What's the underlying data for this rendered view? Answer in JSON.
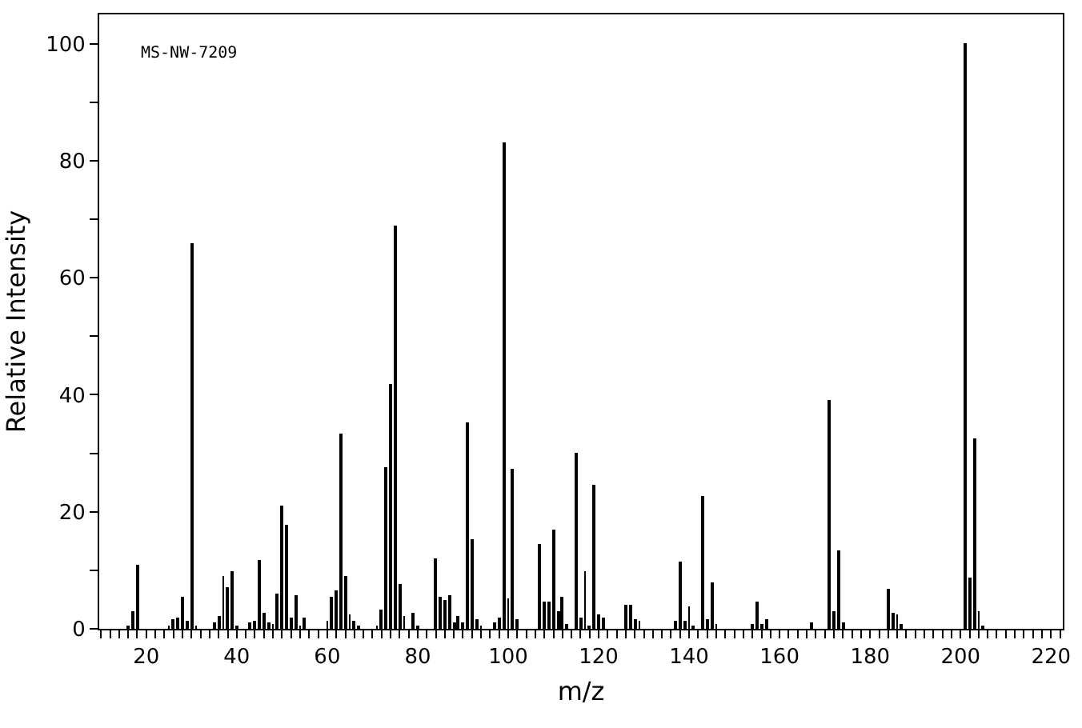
{
  "chart_data": {
    "type": "bar",
    "xlabel": "m/z",
    "ylabel": "Relative Intensity",
    "annotations": [
      "MS-NW-7209"
    ],
    "x": [
      16,
      17,
      18,
      25,
      26,
      27,
      28,
      29,
      30,
      31,
      35,
      36,
      37,
      38,
      39,
      40,
      43,
      44,
      45,
      46,
      47,
      48,
      49,
      50,
      51,
      52,
      53,
      54,
      55,
      60,
      61,
      62,
      63,
      64,
      65,
      66,
      67,
      71,
      72,
      73,
      74,
      75,
      76,
      77,
      79,
      80,
      84,
      85,
      86,
      87,
      88,
      89,
      90,
      91,
      92,
      93,
      94,
      97,
      98,
      99,
      100,
      101,
      102,
      107,
      108,
      109,
      110,
      111,
      112,
      113,
      115,
      116,
      117,
      118,
      119,
      120,
      121,
      126,
      127,
      128,
      129,
      137,
      138,
      139,
      140,
      141,
      143,
      144,
      145,
      146,
      154,
      155,
      156,
      157,
      167,
      171,
      172,
      173,
      174,
      184,
      185,
      186,
      187,
      201,
      202,
      203,
      204,
      205
    ],
    "values": [
      0.6,
      3,
      11,
      0.5,
      1.6,
      2,
      5.5,
      1.4,
      65.8,
      0.5,
      1.1,
      2.2,
      9,
      7.1,
      9.8,
      0.5,
      1.2,
      1.4,
      11.7,
      2.7,
      1.1,
      0.8,
      6.1,
      21,
      17.8,
      1.9,
      5.7,
      0.5,
      1.9,
      1.4,
      5.5,
      6.6,
      33.3,
      9,
      2.5,
      1.4,
      0.5,
      0.6,
      3.3,
      27.6,
      41.8,
      69,
      7.7,
      2.2,
      2.7,
      0.5,
      12,
      5.5,
      4.9,
      5.7,
      1.1,
      2.2,
      1.1,
      35.2,
      15.3,
      1.6,
      0.5,
      1.1,
      1.9,
      83,
      5.2,
      27.3,
      1.6,
      14.5,
      4.6,
      4.6,
      17,
      3,
      5.5,
      0.8,
      30,
      1.9,
      9.8,
      0.6,
      24.6,
      2.5,
      1.9,
      4.1,
      4.1,
      1.6,
      1.4,
      1.4,
      11.6,
      1.4,
      3.8,
      0.5,
      22.7,
      1.6,
      7.9,
      0.8,
      0.8,
      4.6,
      0.8,
      1.6,
      1.2,
      39.1,
      3,
      13.4,
      1.1,
      6.8,
      2.7,
      2.5,
      0.8,
      100,
      8.7,
      32.5,
      3,
      0.5
    ],
    "color": "#000000",
    "xlim": [
      9.6,
      222.6
    ],
    "xticks": [
      {
        "value": 10,
        "label": null
      },
      {
        "value": 12,
        "label": null
      },
      {
        "value": 14,
        "label": null
      },
      {
        "value": 16,
        "label": null
      },
      {
        "value": 18,
        "label": null
      },
      20,
      {
        "value": 22,
        "label": null
      },
      {
        "value": 24,
        "label": null
      },
      {
        "value": 26,
        "label": null
      },
      {
        "value": 28,
        "label": null
      },
      {
        "value": 30,
        "label": null
      },
      {
        "value": 32,
        "label": null
      },
      {
        "value": 34,
        "label": null
      },
      {
        "value": 36,
        "label": null
      },
      {
        "value": 38,
        "label": null
      },
      40,
      {
        "value": 42,
        "label": null
      },
      {
        "value": 44,
        "label": null
      },
      {
        "value": 46,
        "label": null
      },
      {
        "value": 48,
        "label": null
      },
      {
        "value": 50,
        "label": null
      },
      {
        "value": 52,
        "label": null
      },
      {
        "value": 54,
        "label": null
      },
      {
        "value": 56,
        "label": null
      },
      {
        "value": 58,
        "label": null
      },
      60,
      {
        "value": 62,
        "label": null
      },
      {
        "value": 64,
        "label": null
      },
      {
        "value": 66,
        "label": null
      },
      {
        "value": 68,
        "label": null
      },
      {
        "value": 70,
        "label": null
      },
      {
        "value": 72,
        "label": null
      },
      {
        "value": 74,
        "label": null
      },
      {
        "value": 76,
        "label": null
      },
      {
        "value": 78,
        "label": null
      },
      80,
      {
        "value": 82,
        "label": null
      },
      {
        "value": 84,
        "label": null
      },
      {
        "value": 86,
        "label": null
      },
      {
        "value": 88,
        "label": null
      },
      {
        "value": 90,
        "label": null
      },
      {
        "value": 92,
        "label": null
      },
      {
        "value": 94,
        "label": null
      },
      {
        "value": 96,
        "label": null
      },
      {
        "value": 98,
        "label": null
      },
      100,
      {
        "value": 102,
        "label": null
      },
      {
        "value": 104,
        "label": null
      },
      {
        "value": 106,
        "label": null
      },
      {
        "value": 108,
        "label": null
      },
      {
        "value": 110,
        "label": null
      },
      {
        "value": 112,
        "label": null
      },
      {
        "value": 114,
        "label": null
      },
      {
        "value": 116,
        "label": null
      },
      {
        "value": 118,
        "label": null
      },
      120,
      {
        "value": 122,
        "label": null
      },
      {
        "value": 124,
        "label": null
      },
      {
        "value": 126,
        "label": null
      },
      {
        "value": 128,
        "label": null
      },
      {
        "value": 130,
        "label": null
      },
      {
        "value": 132,
        "label": null
      },
      {
        "value": 134,
        "label": null
      },
      {
        "value": 136,
        "label": null
      },
      {
        "value": 138,
        "label": null
      },
      140,
      {
        "value": 142,
        "label": null
      },
      {
        "value": 144,
        "label": null
      },
      {
        "value": 146,
        "label": null
      },
      {
        "value": 148,
        "label": null
      },
      {
        "value": 150,
        "label": null
      },
      {
        "value": 152,
        "label": null
      },
      {
        "value": 154,
        "label": null
      },
      {
        "value": 156,
        "label": null
      },
      {
        "value": 158,
        "label": null
      },
      160,
      {
        "value": 162,
        "label": null
      },
      {
        "value": 164,
        "label": null
      },
      {
        "value": 166,
        "label": null
      },
      {
        "value": 168,
        "label": null
      },
      {
        "value": 170,
        "label": null
      },
      {
        "value": 172,
        "label": null
      },
      {
        "value": 174,
        "label": null
      },
      {
        "value": 176,
        "label": null
      },
      {
        "value": 178,
        "label": null
      },
      180,
      {
        "value": 182,
        "label": null
      },
      {
        "value": 184,
        "label": null
      },
      {
        "value": 186,
        "label": null
      },
      {
        "value": 188,
        "label": null
      },
      {
        "value": 190,
        "label": null
      },
      {
        "value": 192,
        "label": null
      },
      {
        "value": 194,
        "label": null
      },
      {
        "value": 196,
        "label": null
      },
      {
        "value": 198,
        "label": null
      },
      200,
      {
        "value": 202,
        "label": null
      },
      {
        "value": 204,
        "label": null
      },
      {
        "value": 206,
        "label": null
      },
      {
        "value": 208,
        "label": null
      },
      {
        "value": 210,
        "label": null
      },
      {
        "value": 212,
        "label": null
      },
      {
        "value": 214,
        "label": null
      },
      {
        "value": 216,
        "label": null
      },
      {
        "value": 218,
        "label": null
      },
      220,
      {
        "value": 222,
        "label": null
      }
    ],
    "ylim": [
      0,
      105
    ],
    "yticks": [
      0,
      {
        "value": 10,
        "label": null
      },
      20,
      {
        "value": 30,
        "label": null
      },
      40,
      {
        "value": 50,
        "label": null
      },
      60,
      {
        "value": 70,
        "label": null
      },
      80,
      {
        "value": 90,
        "label": null
      },
      100
    ],
    "grid": false
  }
}
